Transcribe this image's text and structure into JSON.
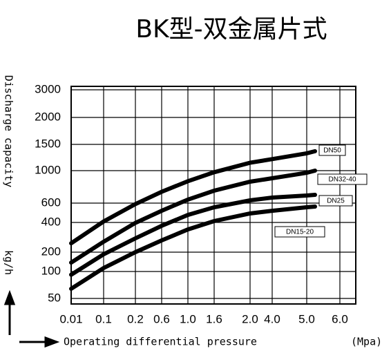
{
  "chart_data": {
    "type": "line",
    "title": "BK型-双金属片式",
    "x_label": "Operating differential pressure",
    "x_unit": "(Mpa)",
    "y_label": "Discharge capacity",
    "y_unit": "kg/h",
    "x": [
      0.01,
      0.1,
      0.2,
      0.6,
      1.0,
      1.6,
      2.0,
      4.0,
      5.0,
      5.25
    ],
    "series": [
      {
        "name": "DN50",
        "color": "#000000",
        "values": [
          260,
          410,
          590,
          740,
          870,
          980,
          1150,
          1220,
          1330,
          1370
        ]
      },
      {
        "name": "DN32-40",
        "color": "#000000",
        "values": [
          146,
          270,
          397,
          521,
          643,
          753,
          864,
          906,
          974,
          1000
        ]
      },
      {
        "name": "DN25",
        "color": "#000000",
        "values": [
          94,
          189,
          293,
          377,
          478,
          557,
          634,
          668,
          694,
          702
        ]
      },
      {
        "name": "DN15-20",
        "color": "#000000",
        "values": [
          68,
          118,
          200,
          279,
          353,
          414,
          493,
          521,
          557,
          564
        ]
      }
    ],
    "xlim": [
      0.01,
      6.0
    ],
    "xticks": [
      0.01,
      0.1,
      0.2,
      0.6,
      {
        "value": 1,
        "label": "1.0"
      },
      1.6,
      {
        "value": 2,
        "label": "2.0"
      },
      {
        "value": 4,
        "label": "4.0"
      },
      {
        "value": 5,
        "label": "5.0"
      },
      {
        "value": 6,
        "label": "6.0"
      }
    ],
    "ylim": [
      50,
      3000
    ],
    "yticks": [
      50,
      100,
      200,
      400,
      600,
      1000,
      1500,
      2000,
      3000
    ],
    "grid": true
  }
}
